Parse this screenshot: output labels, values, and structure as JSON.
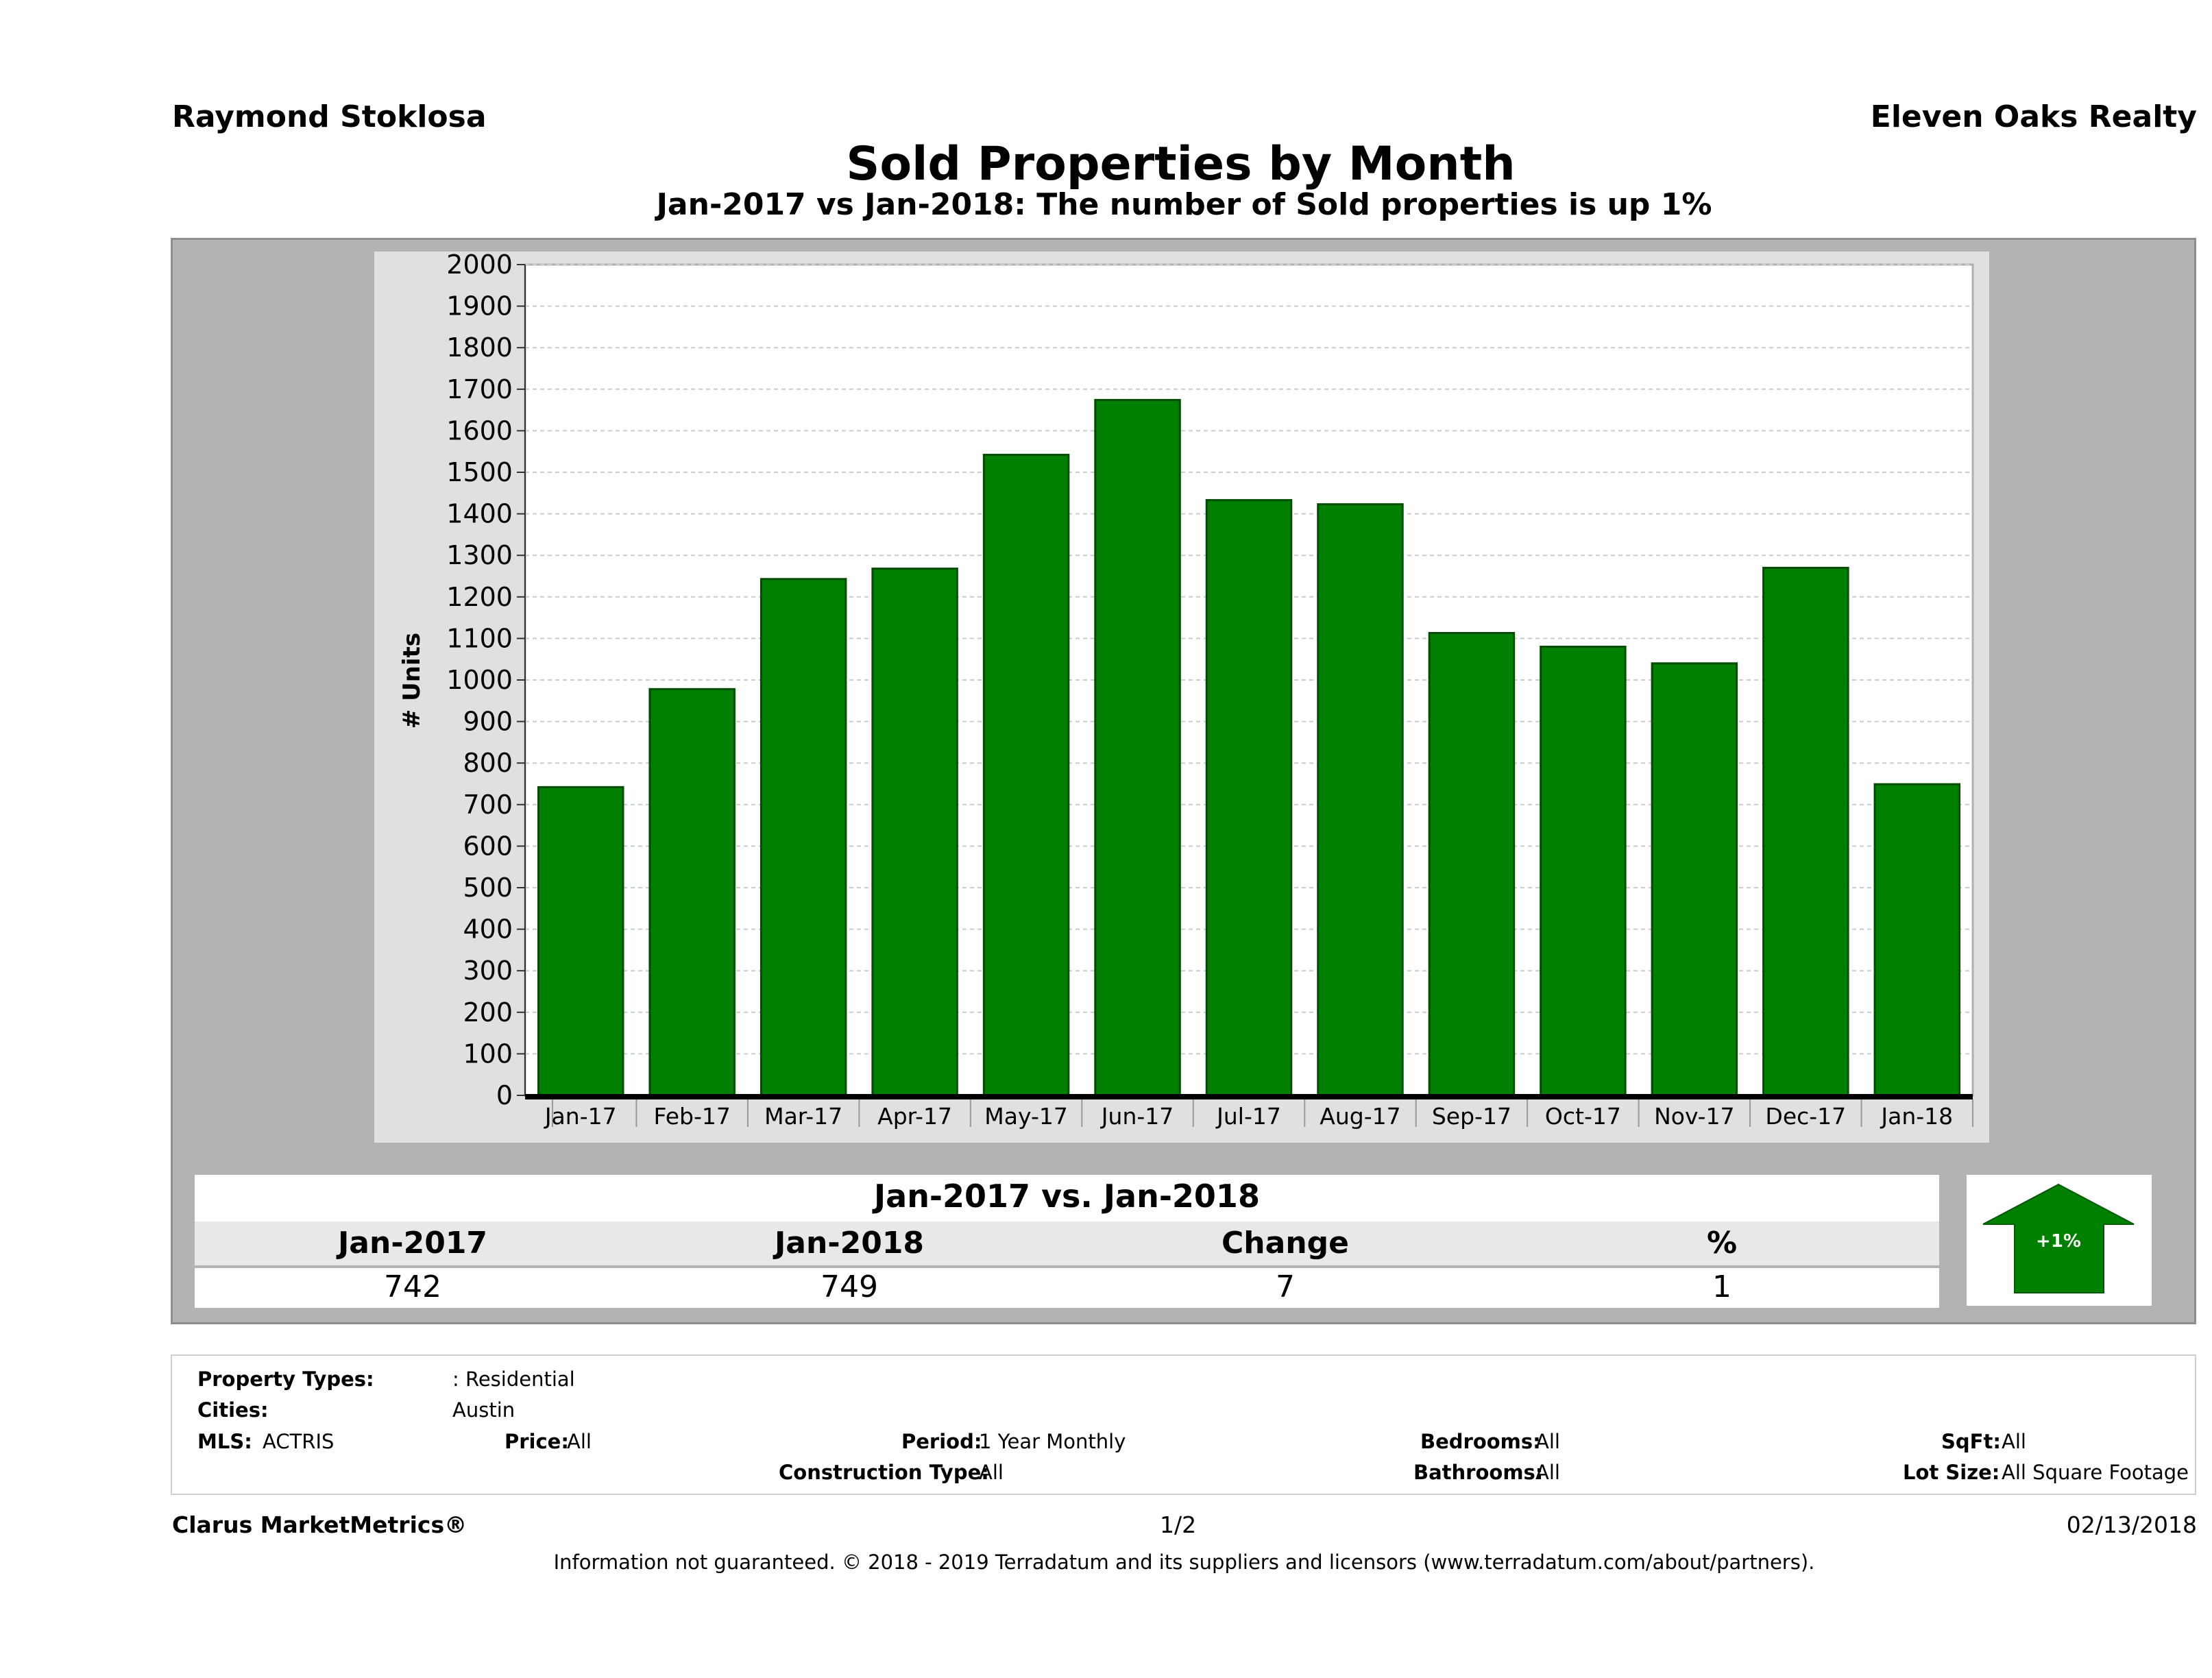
{
  "header": {
    "agent": "Raymond Stoklosa",
    "brokerage": "Eleven Oaks Realty",
    "title": "Sold Properties by Month",
    "subtitle": "Jan-2017 vs Jan-2018: The number of Sold  properties is up 1%"
  },
  "chart_data": {
    "type": "bar",
    "categories": [
      "Jan-17",
      "Feb-17",
      "Mar-17",
      "Apr-17",
      "May-17",
      "Jun-17",
      "Jul-17",
      "Aug-17",
      "Sep-17",
      "Oct-17",
      "Nov-17",
      "Dec-17",
      "Jan-18"
    ],
    "values": [
      742,
      978,
      1243,
      1268,
      1542,
      1674,
      1433,
      1423,
      1113,
      1080,
      1040,
      1270,
      749
    ],
    "ylabel": "# Units",
    "xlabel": "",
    "ylim": [
      0,
      2000
    ],
    "yticks": [
      0,
      100,
      200,
      300,
      400,
      500,
      600,
      700,
      800,
      900,
      1000,
      1100,
      1200,
      1300,
      1400,
      1500,
      1600,
      1700,
      1800,
      1900,
      2000
    ],
    "grid": true,
    "bar_color": "#008000"
  },
  "summary": {
    "title": "Jan-2017 vs. Jan-2018",
    "headers": [
      "Jan-2017",
      "Jan-2018",
      "Change",
      "%"
    ],
    "values": [
      "742",
      "749",
      "7",
      "1"
    ],
    "badge": "+1%",
    "badge_color": "#008000"
  },
  "filters": {
    "property_types_label": "Property Types:",
    "property_types_value": ": Residential",
    "cities_label": "Cities:",
    "cities_value": "Austin",
    "mls_label": "MLS:",
    "mls_value": "ACTRIS",
    "price_label": "Price:",
    "price_value": "All",
    "period_label": "Period:",
    "period_value": "1 Year Monthly",
    "construction_label": "Construction Type:",
    "construction_value": "All",
    "bedrooms_label": "Bedrooms:",
    "bedrooms_value": "All",
    "bathrooms_label": "Bathrooms:",
    "bathrooms_value": "All",
    "sqft_label": "SqFt:",
    "sqft_value": "All",
    "lotsize_label": "Lot Size:",
    "lotsize_value": "All Square Footage"
  },
  "footer": {
    "brand": "Clarus MarketMetrics®",
    "page": "1/2",
    "date": "02/13/2018",
    "disclaimer": "Information not guaranteed. © 2018 - 2019 Terradatum and its suppliers and licensors (www.terradatum.com/about/partners)."
  }
}
